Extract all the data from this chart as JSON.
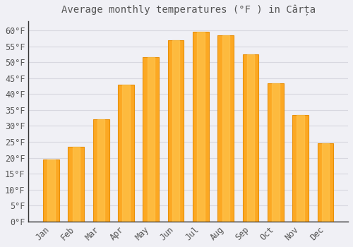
{
  "title": "Average monthly temperatures (°F ) in Cârța",
  "months": [
    "Jan",
    "Feb",
    "Mar",
    "Apr",
    "May",
    "Jun",
    "Jul",
    "Aug",
    "Sep",
    "Oct",
    "Nov",
    "Dec"
  ],
  "values": [
    19.5,
    23.5,
    32.0,
    43.0,
    51.5,
    57.0,
    59.5,
    58.5,
    52.5,
    43.5,
    33.5,
    24.5
  ],
  "bar_color_main": "#FCA823",
  "bar_color_edge": "#E8900A",
  "background_color": "#F0F0F5",
  "grid_color": "#D8D8E0",
  "text_color": "#555555",
  "axis_color": "#333333",
  "ylim": [
    0,
    63
  ],
  "yticks": [
    0,
    5,
    10,
    15,
    20,
    25,
    30,
    35,
    40,
    45,
    50,
    55,
    60
  ],
  "title_fontsize": 10,
  "tick_fontsize": 8.5,
  "figsize": [
    5.0,
    3.5
  ],
  "dpi": 100
}
